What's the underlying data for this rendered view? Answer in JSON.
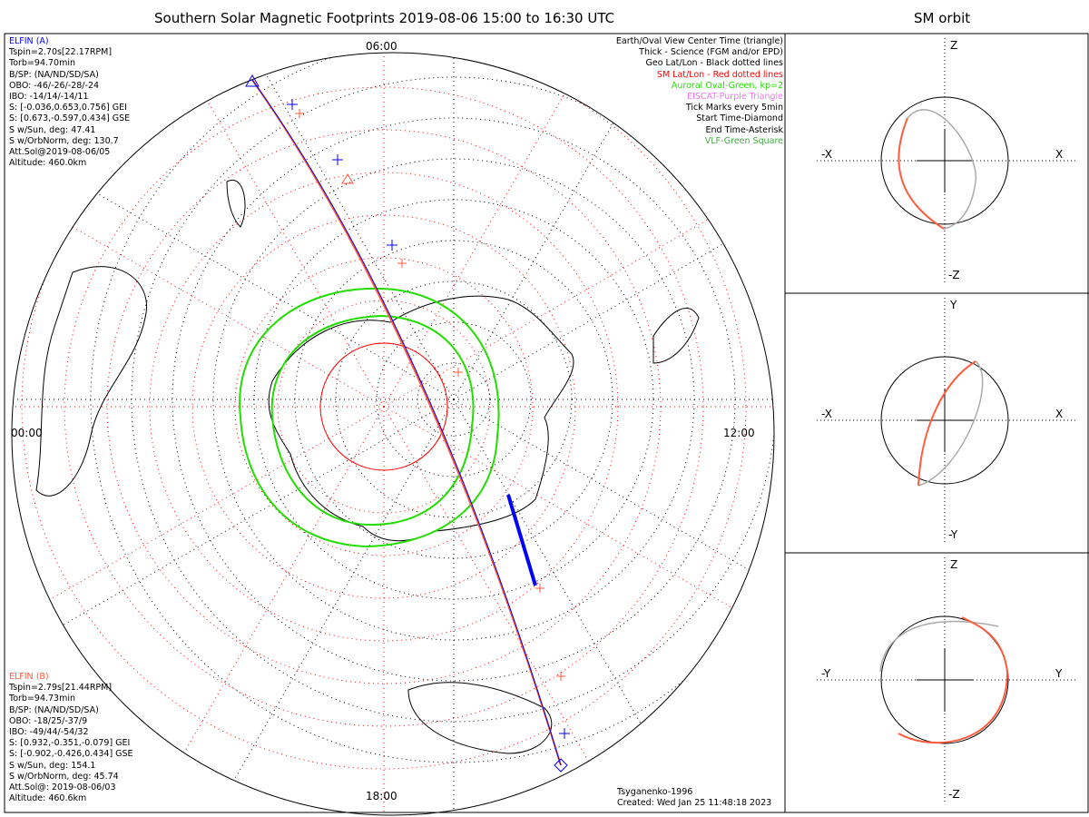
{
  "title": "Southern Solar Magnetic Footprints 2019-08-06 15:00 to 16:30 UTC",
  "orbit_title": "SM orbit",
  "mlt_labels": {
    "top": "06:00",
    "right": "12:00",
    "bottom": "18:00",
    "left": "00:00"
  },
  "elfin_a": {
    "name": "ELFIN (A)",
    "lines": [
      "Tspin=2.70s[22.17RPM]",
      "Torb=94.70min",
      "B/SP: (NA/ND/SD/SA)",
      "OBO: -46/-26/-28/-24",
      "IBO: -14/14/-14/11",
      "S: [-0.036,0.653,0.756] GEI",
      "S: [0.673,-0.597,0.434] GSE",
      "S w/Sun, deg: 47.41",
      "S w/OrbNorm, deg: 130.7",
      "Att.Sol@2019-08-06/05",
      "Altitude: 460.0km"
    ],
    "color": "#0000ff"
  },
  "elfin_b": {
    "name": "ELFIN (B)",
    "lines": [
      "Tspin=2.79s[21.44RPM]",
      "Torb=94.73min",
      "B/SP: (NA/ND/SD/SA)",
      "OBO: -18/25/-37/9",
      "IBO: -49/44/-54/32",
      "S: [0.932,-0.351,-0.079] GEI",
      "S: [-0.902,-0.426,0.434] GSE",
      "S w/Sun, deg: 154.1",
      "S w/OrbNorm, deg: 45.74",
      "Att.Sol@: 2019-08-06/03",
      "Altitude: 460.6km"
    ],
    "color": "#ff5a3c"
  },
  "legend": [
    {
      "text": "Earth/Oval View Center Time (triangle)",
      "color": "#000000"
    },
    {
      "text": "Thick - Science (FGM and/or EPD)",
      "color": "#000000"
    },
    {
      "text": "Geo Lat/Lon - Black dotted lines",
      "color": "#000000"
    },
    {
      "text": "SM Lat/Lon - Red dotted lines",
      "color": "#ff0000"
    },
    {
      "text": "Auroral Oval-Green, kp=2",
      "color": "#22dd00"
    },
    {
      "text": "EISCAT-Purple Triangle",
      "color": "#ee77ee"
    },
    {
      "text": "Tick Marks every 5min",
      "color": "#000000"
    },
    {
      "text": "Start Time-Diamond",
      "color": "#000000"
    },
    {
      "text": "End Time-Asterisk",
      "color": "#000000"
    },
    {
      "text": "VLF-Green Square",
      "color": "#44aa44"
    }
  ],
  "footer": {
    "model": "Tsyganenko-1996",
    "created": "Created: Wed Jan 25 11:48:18 2023"
  },
  "orbit_panels": [
    {
      "top": "Z",
      "bottom": "-Z",
      "left": "-X",
      "right": "X"
    },
    {
      "top": "Y",
      "bottom": "-Y",
      "left": "-X",
      "right": "X"
    },
    {
      "top": "Z",
      "bottom": "-Z",
      "left": "-Y",
      "right": "Y"
    }
  ]
}
